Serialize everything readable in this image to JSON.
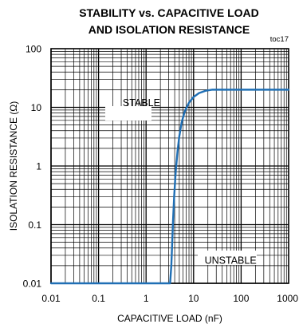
{
  "chart_data": {
    "type": "line",
    "title": "STABILITY vs. CAPACITIVE LOAD",
    "subtitle": "AND ISOLATION RESISTANCE",
    "figure_code": "toc17",
    "xlabel": "CAPACITIVE LOAD (nF)",
    "ylabel": "ISOLATION RESISTANCE (Ω)",
    "x_scale": "log",
    "y_scale": "log",
    "xlim": [
      0.01,
      1000
    ],
    "ylim": [
      0.01,
      100
    ],
    "x_ticks": [
      "0.01",
      "0.1",
      "1",
      "10",
      "100",
      "1000"
    ],
    "y_ticks": [
      "0.01",
      "0.1",
      "1",
      "10",
      "100"
    ],
    "grid": true,
    "color": "#1f6fb5",
    "annotations": [
      {
        "text": "STABLE",
        "x": 0.8,
        "y": 12
      },
      {
        "text": "UNSTABLE",
        "x": 60,
        "y": 0.025
      }
    ],
    "series": [
      {
        "x": [
          0.01,
          1.5,
          3.2,
          3.4,
          3.55,
          3.7,
          3.9,
          4.2,
          4.6,
          5.0,
          5.6,
          6.5,
          8,
          10,
          13,
          18,
          25,
          40,
          100,
          1000
        ],
        "y": [
          0.01,
          0.01,
          0.01,
          0.02,
          0.05,
          0.12,
          0.3,
          0.8,
          1.8,
          3.2,
          5.5,
          8.5,
          12,
          15,
          17.5,
          19.2,
          20,
          20,
          20,
          20
        ]
      }
    ]
  }
}
